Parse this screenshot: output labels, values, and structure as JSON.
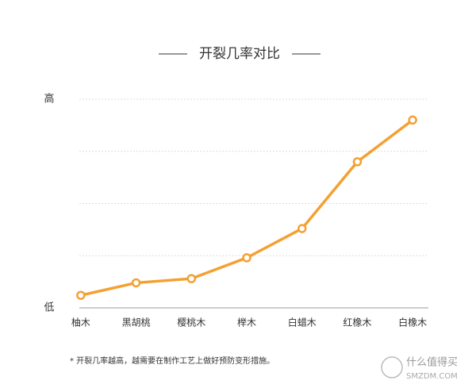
{
  "chart_data": {
    "type": "line",
    "title": "开裂几率对比",
    "categories": [
      "柚木",
      "黑胡桃",
      "樱桃木",
      "榉木",
      "白蜡木",
      "红橡木",
      "白橡木"
    ],
    "values": [
      6,
      12,
      14,
      24,
      38,
      70,
      90
    ],
    "color": "#f5a033",
    "ylim": [
      0,
      100
    ],
    "yticks": [
      {
        "value": 0,
        "label": "低"
      },
      {
        "value": 100,
        "label": "高"
      }
    ],
    "ygrid": [
      25,
      50,
      75,
      100
    ],
    "footnote": "* 开裂几率越高，越需要在制作工艺上做好预防变形措施。",
    "watermark": {
      "name": "什么值得买",
      "site": "SMZDM.COM"
    }
  }
}
